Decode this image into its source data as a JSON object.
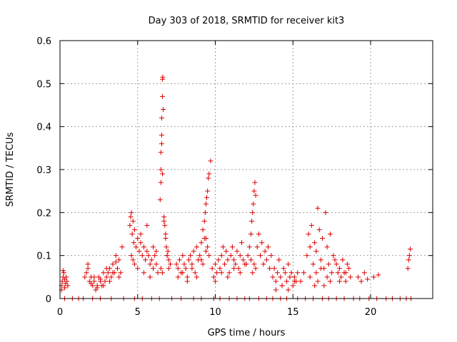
{
  "chart_data": {
    "type": "scatter",
    "title": "Day 303 of 2018, SRMTID for receiver kit3",
    "xlabel": "GPS time / hours",
    "ylabel": "SRMTID / TECUs",
    "xlim": [
      0,
      24
    ],
    "ylim": [
      0,
      0.6
    ],
    "xticks": [
      0,
      5,
      10,
      15,
      20
    ],
    "yticks": [
      0,
      0.1,
      0.2,
      0.3,
      0.4,
      0.5,
      0.6
    ],
    "ytick_labels": [
      "0",
      "0.1",
      "0.2",
      "0.3",
      "0.4",
      "0.5",
      "0.6"
    ],
    "grid": true,
    "marker": "plus",
    "color": "#dd0000",
    "series": [
      {
        "name": "kit3",
        "x": [
          0.1,
          0.15,
          0.2,
          0.25,
          0.3,
          0.35,
          0.4,
          0.45,
          0.5,
          0.1,
          0.2,
          0.3,
          1.6,
          1.7,
          1.8,
          1.9,
          2.0,
          2.1,
          2.2,
          2.3,
          2.4,
          2.5,
          2.6,
          2.7,
          2.8,
          2.9,
          3.0,
          3.1,
          3.2,
          3.3,
          3.4,
          3.5,
          3.6,
          3.7,
          3.8,
          3.9,
          4.0,
          1.8,
          2.0,
          2.2,
          2.4,
          2.6,
          2.8,
          3.0,
          3.2,
          3.4,
          3.6,
          3.8,
          4.5,
          4.55,
          4.6,
          4.65,
          4.7,
          4.75,
          4.8,
          4.9,
          5.0,
          5.1,
          5.2,
          5.3,
          5.4,
          5.5,
          5.6,
          5.7,
          5.8,
          5.9,
          6.0,
          6.1,
          6.2,
          6.3,
          4.6,
          4.7,
          4.8,
          5.0,
          5.2,
          5.4,
          5.6,
          5.8,
          6.0,
          6.2,
          6.45,
          6.5,
          6.5,
          6.55,
          6.55,
          6.6,
          6.6,
          6.62,
          6.65,
          6.5,
          6.55,
          6.6,
          6.7,
          6.75,
          6.8,
          6.85,
          6.9,
          6.95,
          7.0,
          7.1,
          6.5,
          6.6,
          6.7,
          6.8,
          6.9,
          7.0,
          7.5,
          7.6,
          7.7,
          7.8,
          7.9,
          8.0,
          8.1,
          8.2,
          8.3,
          8.4,
          8.5,
          8.6,
          8.7,
          8.8,
          8.9,
          9.0,
          9.1,
          9.2,
          9.3,
          9.4,
          9.5,
          9.6,
          9.2,
          9.3,
          9.35,
          9.4,
          9.45,
          9.5,
          9.55,
          9.6,
          9.7,
          7.6,
          7.9,
          8.2,
          8.5,
          8.8,
          9.1,
          9.4,
          9.8,
          9.9,
          10.0,
          10.1,
          10.2,
          10.3,
          10.4,
          10.5,
          10.6,
          10.7,
          10.8,
          10.9,
          11.0,
          11.1,
          11.2,
          11.3,
          11.4,
          11.5,
          11.6,
          11.7,
          11.8,
          11.9,
          10.0,
          10.4,
          10.8,
          11.2,
          11.6,
          12.0,
          12.1,
          12.2,
          12.3,
          12.35,
          12.4,
          12.45,
          12.5,
          12.55,
          12.6,
          12.7,
          12.8,
          12.9,
          13.0,
          13.1,
          13.2,
          13.3,
          13.4,
          13.5,
          13.6,
          12.3,
          12.4,
          12.5,
          12.6,
          13.7,
          13.8,
          13.9,
          14.0,
          14.1,
          14.2,
          14.3,
          14.4,
          14.5,
          14.6,
          14.7,
          14.8,
          14.9,
          15.0,
          15.1,
          15.2,
          15.3,
          13.9,
          14.3,
          14.7,
          15.1,
          15.5,
          15.7,
          15.9,
          16.0,
          16.1,
          16.2,
          16.3,
          16.4,
          16.5,
          16.6,
          16.7,
          16.8,
          16.9,
          17.0,
          17.1,
          17.2,
          17.3,
          17.4,
          17.5,
          17.6,
          17.7,
          16.1,
          16.4,
          16.5,
          16.6,
          16.8,
          17.0,
          17.2,
          17.4,
          17.8,
          17.9,
          18.0,
          18.1,
          18.2,
          18.3,
          18.4,
          18.5,
          18.6,
          18.7,
          18.0,
          18.4,
          19.2,
          19.4,
          19.6,
          19.8,
          20.2,
          20.5,
          22.4,
          22.45,
          22.5,
          22.55,
          0.3,
          0.8,
          1.2,
          1.5,
          2.1,
          2.6,
          3.3,
          4.1,
          4.8,
          5.3,
          5.9,
          6.4,
          7.2,
          7.8,
          8.6,
          9.1,
          9.9,
          10.3,
          10.9,
          11.4,
          11.9,
          12.2,
          12.8,
          13.3,
          13.7,
          14.2,
          14.6,
          15.3,
          15.8,
          16.3,
          16.9,
          17.3,
          17.8,
          18.3,
          18.9,
          19.3,
          19.9,
          20.4,
          21.0,
          21.4,
          21.9,
          22.3,
          22.6
        ],
        "y": [
          0.03,
          0.04,
          0.05,
          0.06,
          0.045,
          0.035,
          0.05,
          0.04,
          0.03,
          0.02,
          0.065,
          0.025,
          0.05,
          0.06,
          0.07,
          0.04,
          0.05,
          0.03,
          0.04,
          0.02,
          0.03,
          0.05,
          0.04,
          0.03,
          0.06,
          0.04,
          0.05,
          0.06,
          0.07,
          0.05,
          0.08,
          0.06,
          0.1,
          0.07,
          0.09,
          0.06,
          0.12,
          0.08,
          0.035,
          0.05,
          0.025,
          0.045,
          0.03,
          0.07,
          0.04,
          0.06,
          0.085,
          0.05,
          0.17,
          0.19,
          0.2,
          0.15,
          0.18,
          0.13,
          0.16,
          0.12,
          0.14,
          0.11,
          0.13,
          0.1,
          0.12,
          0.09,
          0.11,
          0.1,
          0.08,
          0.09,
          0.07,
          0.1,
          0.08,
          0.06,
          0.1,
          0.09,
          0.08,
          0.07,
          0.15,
          0.06,
          0.17,
          0.05,
          0.12,
          0.11,
          0.23,
          0.3,
          0.34,
          0.38,
          0.42,
          0.47,
          0.51,
          0.515,
          0.44,
          0.27,
          0.36,
          0.29,
          0.19,
          0.17,
          0.14,
          0.12,
          0.1,
          0.11,
          0.09,
          0.08,
          0.07,
          0.06,
          0.18,
          0.15,
          0.1,
          0.07,
          0.08,
          0.07,
          0.09,
          0.06,
          0.1,
          0.08,
          0.07,
          0.05,
          0.09,
          0.1,
          0.08,
          0.11,
          0.06,
          0.12,
          0.09,
          0.1,
          0.13,
          0.08,
          0.14,
          0.11,
          0.12,
          0.1,
          0.16,
          0.18,
          0.2,
          0.22,
          0.235,
          0.25,
          0.28,
          0.29,
          0.32,
          0.05,
          0.06,
          0.04,
          0.07,
          0.05,
          0.09,
          0.14,
          0.07,
          0.05,
          0.08,
          0.06,
          0.09,
          0.07,
          0.1,
          0.12,
          0.08,
          0.11,
          0.09,
          0.06,
          0.1,
          0.12,
          0.09,
          0.08,
          0.11,
          0.07,
          0.1,
          0.13,
          0.09,
          0.08,
          0.04,
          0.06,
          0.05,
          0.07,
          0.06,
          0.08,
          0.1,
          0.12,
          0.15,
          0.18,
          0.2,
          0.22,
          0.25,
          0.27,
          0.24,
          0.12,
          0.15,
          0.1,
          0.13,
          0.08,
          0.11,
          0.09,
          0.12,
          0.07,
          0.1,
          0.09,
          0.06,
          0.08,
          0.07,
          0.05,
          0.07,
          0.04,
          0.06,
          0.09,
          0.05,
          0.03,
          0.07,
          0.06,
          0.04,
          0.08,
          0.05,
          0.06,
          0.03,
          0.05,
          0.04,
          0.06,
          0.02,
          0.03,
          0.02,
          0.04,
          0.04,
          0.06,
          0.1,
          0.15,
          0.12,
          0.17,
          0.08,
          0.13,
          0.11,
          0.21,
          0.16,
          0.09,
          0.14,
          0.07,
          0.2,
          0.12,
          0.08,
          0.15,
          0.06,
          0.1,
          0.09,
          0.05,
          0.03,
          0.06,
          0.04,
          0.07,
          0.03,
          0.05,
          0.04,
          0.08,
          0.06,
          0.07,
          0.05,
          0.09,
          0.06,
          0.04,
          0.08,
          0.07,
          0.05,
          0.04,
          0.06,
          0.05,
          0.04,
          0.06,
          0.045,
          0.05,
          0.055,
          0.07,
          0.09,
          0.1,
          0.115,
          0,
          0,
          0,
          0,
          0,
          0,
          0,
          0,
          0,
          0,
          0,
          0,
          0,
          0,
          0,
          0,
          0,
          0,
          0,
          0,
          0,
          0,
          0,
          0,
          0,
          0,
          0,
          0,
          0,
          0,
          0,
          0,
          0,
          0,
          0,
          0,
          0,
          0,
          0,
          0,
          0,
          0,
          0
        ]
      }
    ]
  }
}
